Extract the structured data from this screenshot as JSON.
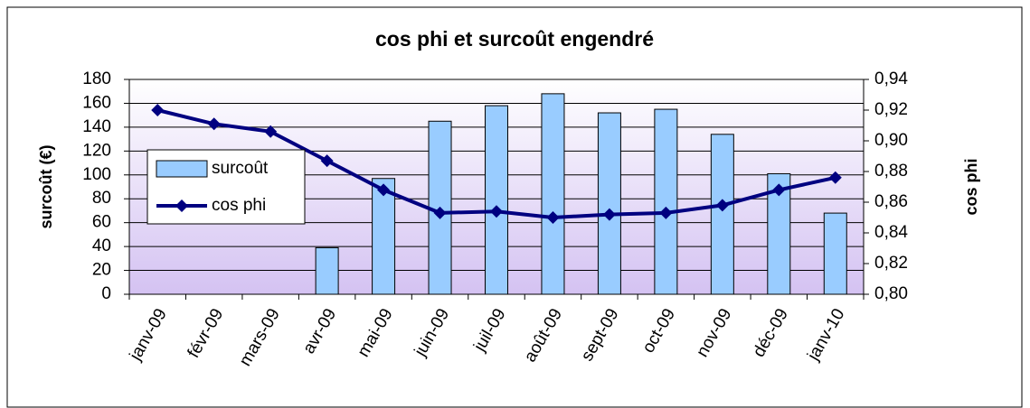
{
  "chart_data": {
    "type": "bar",
    "title": "cos phi et surcoût engendré",
    "ylabel": "surcoût (€)",
    "y2label": "cos phi",
    "categories": [
      "janv-09",
      "févr-09",
      "mars-09",
      "avr-09",
      "mai-09",
      "juin-09",
      "juil-09",
      "août-09",
      "sept-09",
      "oct-09",
      "nov-09",
      "déc-09",
      "janv-10"
    ],
    "series": [
      {
        "name": "surcoût",
        "type": "bar",
        "color": "#99ccff",
        "values": [
          null,
          null,
          null,
          39,
          97,
          145,
          158,
          168,
          152,
          155,
          134,
          101,
          68
        ]
      },
      {
        "name": "cos phi",
        "type": "line",
        "axis": "y2",
        "color": "#000080",
        "values": [
          0.92,
          0.911,
          0.906,
          0.887,
          0.868,
          0.853,
          0.854,
          0.85,
          0.852,
          0.853,
          0.858,
          0.868,
          0.876
        ]
      }
    ],
    "ylim": [
      0,
      180
    ],
    "yticks": [
      0,
      20,
      40,
      60,
      80,
      100,
      120,
      140,
      160,
      180
    ],
    "y2lim": [
      0.8,
      0.94
    ],
    "y2ticks": [
      {
        "value": 0.8,
        "label": "0,80"
      },
      {
        "value": 0.82,
        "label": "0,82"
      },
      {
        "value": 0.84,
        "label": "0,84"
      },
      {
        "value": 0.86,
        "label": "0,86"
      },
      {
        "value": 0.88,
        "label": "0,88"
      },
      {
        "value": 0.9,
        "label": "0,90"
      },
      {
        "value": 0.92,
        "label": "0,92"
      },
      {
        "value": 0.94,
        "label": "0,94"
      }
    ],
    "grid": true
  }
}
